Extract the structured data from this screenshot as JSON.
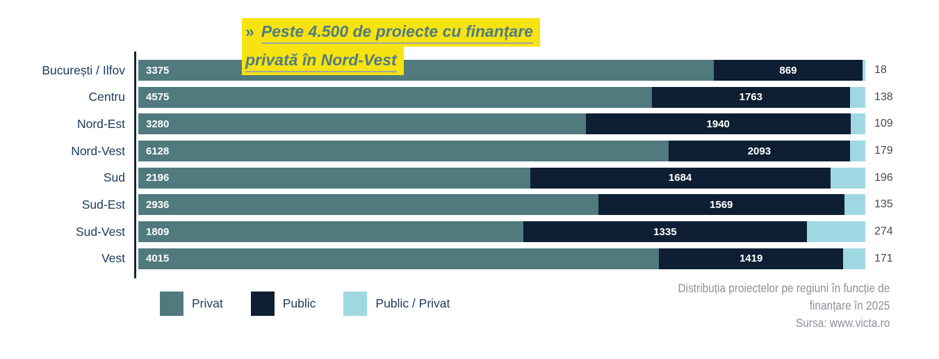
{
  "title": {
    "prefix": "»",
    "line1": "Peste 4.500 de proiecte cu finanțare",
    "line2": "privată în Nord-Vest",
    "highlight_color": "#f8e312",
    "text_color": "#4f7d83",
    "underline_color": "#9fa4a8"
  },
  "chart_data": {
    "type": "bar",
    "orientation": "horizontal",
    "stacking": "100%",
    "grid": false,
    "legend_position": "bottom-left",
    "categories": [
      "București / Ilfov",
      "Centru",
      "Nord-Est",
      "Nord-Vest",
      "Sud",
      "Sud-Est",
      "Sud-Vest",
      "Vest"
    ],
    "series": [
      {
        "name": "Privat",
        "color": "#507a7d",
        "label_style": "inside-left-white",
        "values": [
          3375,
          4575,
          3280,
          6128,
          2196,
          2936,
          1809,
          4015
        ]
      },
      {
        "name": "Public",
        "color": "#0e1f33",
        "label_style": "inside-center-white",
        "values": [
          869,
          1763,
          1940,
          2093,
          1684,
          1569,
          1335,
          1419
        ]
      },
      {
        "name": "Public / Privat",
        "color": "#9fd8e3",
        "label_style": "outside-right",
        "values": [
          18,
          138,
          109,
          179,
          196,
          135,
          274,
          171
        ]
      }
    ],
    "category_label_color": "#1e3c60",
    "outside_value_color": "#414a52",
    "axis_line_color": "#15263b"
  },
  "caption": {
    "line1": "Distribuția proiectelor pe regiuni în funcție de",
    "line2": "finanțare în 2025",
    "source": "Sursa: www.victa.ro",
    "text_color": "#8b919a"
  }
}
